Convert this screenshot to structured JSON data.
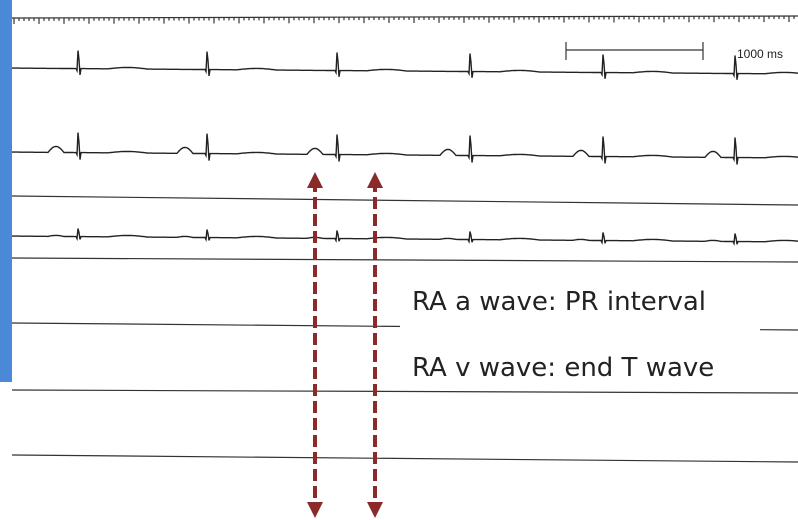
{
  "scale_label": "1000 ms",
  "annotations": [
    "RA a wave: PR interval",
    "RA v wave: end T wave"
  ]
}
